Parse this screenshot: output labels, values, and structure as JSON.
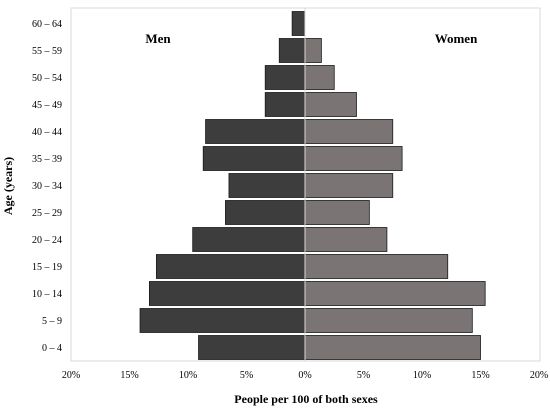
{
  "chart_data": {
    "type": "bar",
    "orientation": "horizontal",
    "title": "",
    "xlabel": "People per 100 of both sexes",
    "ylabel": "Age (years)",
    "xlim": [
      -20,
      20
    ],
    "x_ticks": [
      -20,
      -15,
      -10,
      -5,
      0,
      5,
      10,
      15,
      20
    ],
    "x_tick_labels": [
      "20%",
      "15%",
      "10%",
      "5%",
      "0%",
      "5%",
      "10%",
      "15%",
      "20%"
    ],
    "grid": false,
    "categories": [
      "60 – 64",
      "55 – 59",
      "50 – 54",
      "45 – 49",
      "40 – 44",
      "35 – 39",
      "30 – 34",
      "25 – 29",
      "20 – 24",
      "15 – 19",
      "10 – 14",
      "5 – 9",
      "0 – 4"
    ],
    "series": [
      {
        "name": "Men",
        "side": "left",
        "color": "#3d3d3d",
        "values": [
          1.1,
          2.2,
          3.4,
          3.4,
          8.5,
          8.7,
          6.5,
          6.8,
          9.6,
          12.7,
          13.3,
          14.1,
          9.1
        ]
      },
      {
        "name": "Women",
        "side": "right",
        "color": "#7a7574",
        "values": [
          0.0,
          1.4,
          2.5,
          4.4,
          7.5,
          8.3,
          7.5,
          5.5,
          7.0,
          12.2,
          15.4,
          14.3,
          15.0
        ]
      }
    ],
    "legend_placement": "inside-top"
  }
}
